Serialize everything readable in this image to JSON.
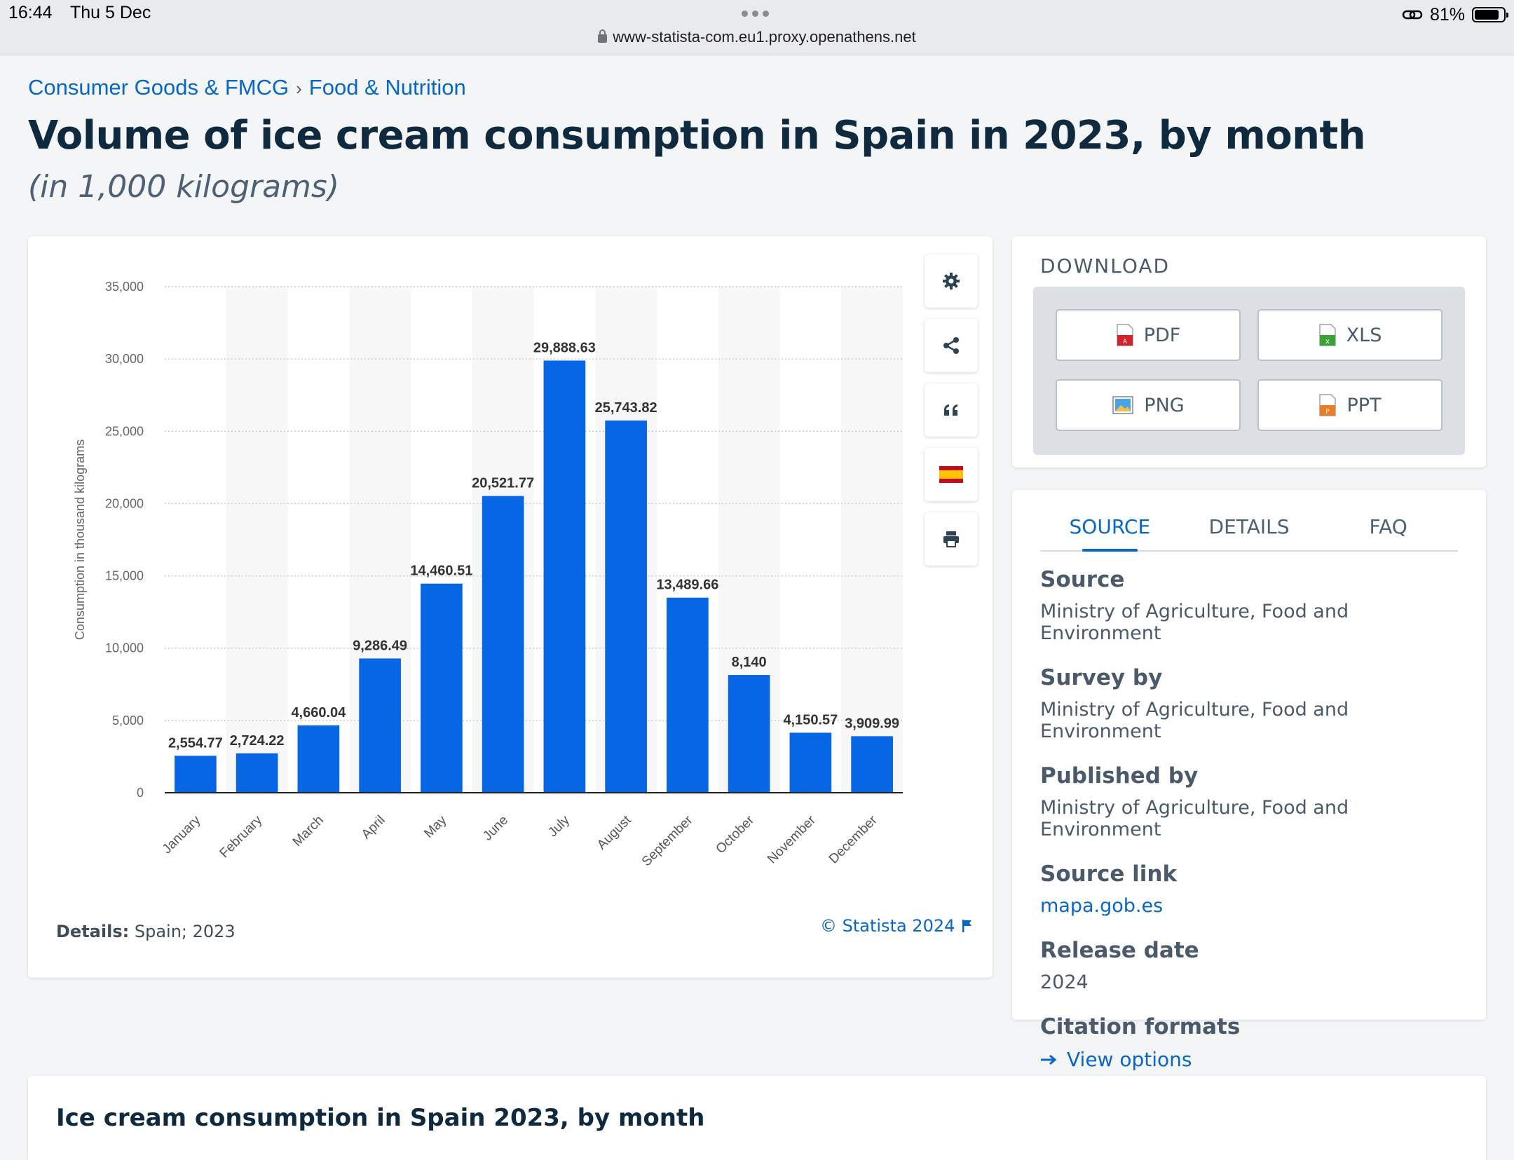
{
  "status_bar": {
    "time": "16:44",
    "date": "Thu 5 Dec",
    "battery_percent": "81%",
    "url": "www-statista-com.eu1.proxy.openathens.net"
  },
  "breadcrumb": {
    "items": [
      "Consumer Goods & FMCG",
      "Food & Nutrition"
    ],
    "separator": "›"
  },
  "page_title": "Volume of ice cream consumption in Spain in 2023, by month",
  "page_subtitle": "(in 1,000 kilograms)",
  "chart_data": {
    "type": "bar",
    "categories": [
      "January",
      "February",
      "March",
      "April",
      "May",
      "June",
      "July",
      "August",
      "September",
      "October",
      "November",
      "December"
    ],
    "values": [
      2554.77,
      2724.22,
      4660.04,
      9286.49,
      14460.51,
      20521.77,
      29888.63,
      25743.82,
      13489.66,
      8140,
      4150.57,
      3909.99
    ],
    "value_labels": [
      "2,554.77",
      "2,724.22",
      "4,660.04",
      "9,286.49",
      "14,460.51",
      "20,521.77",
      "29,888.63",
      "25,743.82",
      "13,489.66",
      "8,140",
      "4,150.57",
      "3,909.99"
    ],
    "ylabel": "Consumption in thousand kilograms",
    "ylim": [
      0,
      35000
    ],
    "yticks": [
      0,
      5000,
      10000,
      15000,
      20000,
      25000,
      30000,
      35000
    ],
    "ytick_labels": [
      "0",
      "5,000",
      "10,000",
      "15,000",
      "20,000",
      "25,000",
      "30,000",
      "35,000"
    ],
    "bar_color": "#0766e4",
    "grid": true
  },
  "chart_footer": {
    "details_label": "Details:",
    "details_value": "Spain; 2023",
    "copyright": "© Statista 2024"
  },
  "tools": [
    "gear-icon",
    "share-icon",
    "quote-icon",
    "spain-flag-icon",
    "print-icon"
  ],
  "download": {
    "title": "DOWNLOAD",
    "buttons": [
      {
        "label": "PDF",
        "icon": "pdf-file-icon"
      },
      {
        "label": "XLS",
        "icon": "xls-file-icon"
      },
      {
        "label": "PNG",
        "icon": "png-file-icon"
      },
      {
        "label": "PPT",
        "icon": "ppt-file-icon"
      }
    ]
  },
  "source_panel": {
    "tabs": [
      "SOURCE",
      "DETAILS",
      "FAQ"
    ],
    "active_tab": "SOURCE",
    "items": [
      {
        "label": "Source",
        "value": "Ministry of Agriculture, Food and Environment"
      },
      {
        "label": "Survey by",
        "value": "Ministry of Agriculture, Food and Environment"
      },
      {
        "label": "Published by",
        "value": "Ministry of Agriculture, Food and Environment"
      },
      {
        "label": "Source link",
        "value": "mapa.gob.es"
      },
      {
        "label": "Release date",
        "value": "2024"
      }
    ],
    "citation_label": "Citation formats",
    "citation_link": "View options"
  },
  "bottom_section_title": "Ice cream consumption in Spain 2023, by month",
  "colors": {
    "accent": "#0667c8",
    "title": "#0f2a3f",
    "bar": "#0766e4"
  }
}
